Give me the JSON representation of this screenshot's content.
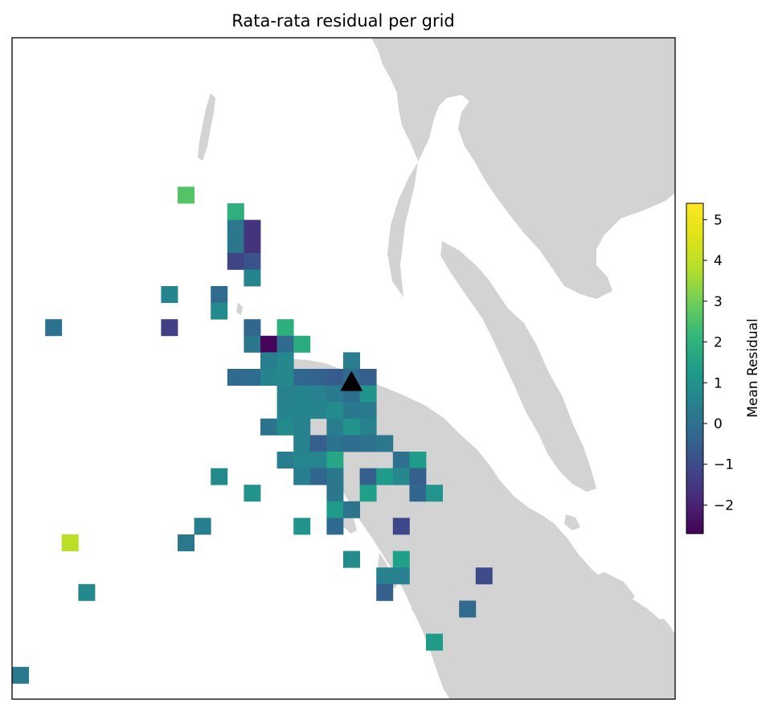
{
  "chart_data": {
    "type": "heatmap",
    "title": "Rata-rata residual per grid",
    "colorbar": {
      "label": "Mean Residual",
      "vmin": -2.7,
      "vmax": 5.4,
      "ticks": [
        5,
        4,
        3,
        2,
        1,
        0,
        -1,
        -2
      ],
      "tick_labels": [
        "5",
        "4",
        "3",
        "2",
        "1",
        "0",
        "−1",
        "−2"
      ],
      "colormap": "viridis"
    },
    "grid": false,
    "land_color": "#d3d3d3",
    "station_marker": {
      "shape": "triangle",
      "color": "#000000",
      "col": 20,
      "row": 20.8
    },
    "cells": [
      {
        "col": 10,
        "row": 9,
        "v": 2.6
      },
      {
        "col": 13,
        "row": 10,
        "v": 1.9
      },
      {
        "col": 13,
        "row": 11,
        "v": 0.2
      },
      {
        "col": 14,
        "row": 11,
        "v": -1.6
      },
      {
        "col": 13,
        "row": 12,
        "v": 0.2
      },
      {
        "col": 14,
        "row": 12,
        "v": -1.6
      },
      {
        "col": 13,
        "row": 13,
        "v": -1.2
      },
      {
        "col": 14,
        "row": 13,
        "v": -0.8
      },
      {
        "col": 14,
        "row": 14,
        "v": 0.6
      },
      {
        "col": 9,
        "row": 15,
        "v": 0.6
      },
      {
        "col": 12,
        "row": 15,
        "v": -0.2
      },
      {
        "col": 12,
        "row": 16,
        "v": 0.8
      },
      {
        "col": 2,
        "row": 17,
        "v": 0.0
      },
      {
        "col": 9,
        "row": 17,
        "v": -1.3
      },
      {
        "col": 14,
        "row": 17,
        "v": -0.3
      },
      {
        "col": 16,
        "row": 17,
        "v": 1.9
      },
      {
        "col": 14,
        "row": 18,
        "v": 0.2
      },
      {
        "col": 15,
        "row": 18,
        "v": -2.6
      },
      {
        "col": 16,
        "row": 18,
        "v": -0.2
      },
      {
        "col": 17,
        "row": 18,
        "v": 1.8
      },
      {
        "col": 16,
        "row": 19,
        "v": 0.7
      },
      {
        "col": 15,
        "row": 19,
        "v": 0.4
      },
      {
        "col": 20,
        "row": 19,
        "v": 0.4
      },
      {
        "col": 13,
        "row": 20,
        "v": -0.2
      },
      {
        "col": 14,
        "row": 20,
        "v": -0.1
      },
      {
        "col": 15,
        "row": 20,
        "v": 0.6
      },
      {
        "col": 16,
        "row": 20,
        "v": 0.7
      },
      {
        "col": 17,
        "row": 20,
        "v": -0.3
      },
      {
        "col": 18,
        "row": 20,
        "v": -0.4
      },
      {
        "col": 19,
        "row": 20,
        "v": -0.6
      },
      {
        "col": 20,
        "row": 20,
        "v": -0.2
      },
      {
        "col": 21,
        "row": 20,
        "v": -0.5
      },
      {
        "col": 16,
        "row": 21,
        "v": 0.5
      },
      {
        "col": 17,
        "row": 21,
        "v": 0.6
      },
      {
        "col": 18,
        "row": 21,
        "v": 0.5
      },
      {
        "col": 19,
        "row": 21,
        "v": 0.3
      },
      {
        "col": 20,
        "row": 21,
        "v": -0.1
      },
      {
        "col": 21,
        "row": 21,
        "v": 1.1
      },
      {
        "col": 16,
        "row": 22,
        "v": 0.6
      },
      {
        "col": 17,
        "row": 22,
        "v": 0.6
      },
      {
        "col": 18,
        "row": 22,
        "v": 0.6
      },
      {
        "col": 19,
        "row": 22,
        "v": 0.8
      },
      {
        "col": 20,
        "row": 22,
        "v": 0.2
      },
      {
        "col": 21,
        "row": 22,
        "v": 0.3
      },
      {
        "col": 15,
        "row": 23,
        "v": 0.1
      },
      {
        "col": 16,
        "row": 23,
        "v": 0.8
      },
      {
        "col": 17,
        "row": 23,
        "v": 0.5
      },
      {
        "col": 19,
        "row": 23,
        "v": 0.4
      },
      {
        "col": 20,
        "row": 23,
        "v": 1.1
      },
      {
        "col": 21,
        "row": 23,
        "v": 0.5
      },
      {
        "col": 17,
        "row": 24,
        "v": 0.5
      },
      {
        "col": 18,
        "row": 24,
        "v": -0.5
      },
      {
        "col": 19,
        "row": 24,
        "v": 0.1
      },
      {
        "col": 20,
        "row": 24,
        "v": -0.1
      },
      {
        "col": 21,
        "row": 24,
        "v": 0.0
      },
      {
        "col": 22,
        "row": 24,
        "v": 0.2
      },
      {
        "col": 16,
        "row": 25,
        "v": 0.4
      },
      {
        "col": 17,
        "row": 25,
        "v": 0.6
      },
      {
        "col": 18,
        "row": 25,
        "v": 0.6
      },
      {
        "col": 19,
        "row": 25,
        "v": 1.6
      },
      {
        "col": 23,
        "row": 25,
        "v": 0.0
      },
      {
        "col": 24,
        "row": 25,
        "v": 1.3
      },
      {
        "col": 12,
        "row": 26,
        "v": 0.8
      },
      {
        "col": 17,
        "row": 26,
        "v": 0.4
      },
      {
        "col": 18,
        "row": 26,
        "v": -0.3
      },
      {
        "col": 19,
        "row": 26,
        "v": 0.2
      },
      {
        "col": 21,
        "row": 26,
        "v": -0.5
      },
      {
        "col": 22,
        "row": 26,
        "v": 1.3
      },
      {
        "col": 23,
        "row": 26,
        "v": 0.7
      },
      {
        "col": 24,
        "row": 26,
        "v": -0.5
      },
      {
        "col": 14,
        "row": 27,
        "v": 1.1
      },
      {
        "col": 19,
        "row": 27,
        "v": 0.2
      },
      {
        "col": 21,
        "row": 27,
        "v": 1.4
      },
      {
        "col": 24,
        "row": 27,
        "v": -0.3
      },
      {
        "col": 25,
        "row": 27,
        "v": 1.1
      },
      {
        "col": 19,
        "row": 28,
        "v": 1.3
      },
      {
        "col": 20,
        "row": 28,
        "v": 0.1
      },
      {
        "col": 11,
        "row": 29,
        "v": 0.4
      },
      {
        "col": 17,
        "row": 29,
        "v": 1.1
      },
      {
        "col": 19,
        "row": 29,
        "v": -0.2
      },
      {
        "col": 23,
        "row": 29,
        "v": -1.1
      },
      {
        "col": 3,
        "row": 30,
        "v": 3.9
      },
      {
        "col": 10,
        "row": 30,
        "v": 0.2
      },
      {
        "col": 20,
        "row": 31,
        "v": 0.8
      },
      {
        "col": 23,
        "row": 31,
        "v": 1.4
      },
      {
        "col": 22,
        "row": 32,
        "v": 0.5
      },
      {
        "col": 23,
        "row": 32,
        "v": 0.5
      },
      {
        "col": 28,
        "row": 32,
        "v": -1.0
      },
      {
        "col": 4,
        "row": 33,
        "v": 0.7
      },
      {
        "col": 22,
        "row": 33,
        "v": -0.5
      },
      {
        "col": 27,
        "row": 34,
        "v": -0.2
      },
      {
        "col": 25,
        "row": 36,
        "v": 1.3
      },
      {
        "col": 0,
        "row": 38,
        "v": 0.3
      }
    ]
  }
}
